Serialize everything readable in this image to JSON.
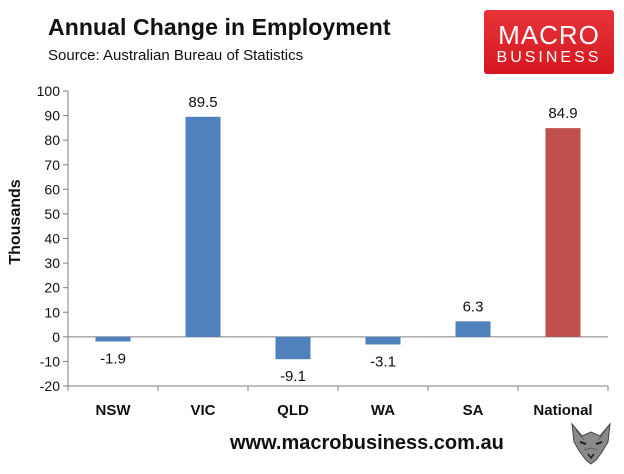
{
  "header": {
    "title": "Annual Change in Employment",
    "subtitle": "Source: Australian Bureau of Statistics"
  },
  "logo": {
    "line1": "MACRO",
    "line2": "BUSINESS",
    "color": "#d9222a"
  },
  "footer": {
    "url": "www.macrobusiness.com.au"
  },
  "chart_data": {
    "type": "bar",
    "title": "Annual Change in Employment",
    "subtitle": "Source: Australian Bureau of Statistics",
    "xlabel": "",
    "ylabel": "Thousands",
    "ylim": [
      -20,
      100
    ],
    "yticks": [
      100,
      90,
      80,
      70,
      60,
      50,
      40,
      30,
      20,
      10,
      0,
      -10,
      -20
    ],
    "categories": [
      "NSW",
      "VIC",
      "QLD",
      "WA",
      "SA",
      "National"
    ],
    "values": [
      -1.9,
      89.5,
      -9.1,
      -3.1,
      6.3,
      84.9
    ],
    "data_labels": [
      "-1.9",
      "89.5",
      "-9.1",
      "-3.1",
      "6.3",
      "84.9"
    ],
    "bar_colors": [
      "#4f81bd",
      "#4f81bd",
      "#4f81bd",
      "#4f81bd",
      "#4f81bd",
      "#c0504d"
    ],
    "grid": false,
    "legend": "none"
  }
}
